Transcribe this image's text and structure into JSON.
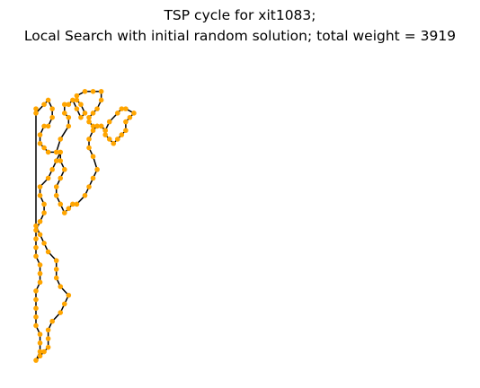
{
  "chart_data": {
    "type": "line",
    "title_line1": "TSP cycle for xit1083;",
    "title_line2": "Local Search with initial random solution; total weight = 3919",
    "xlabel": "",
    "ylabel": "",
    "axes_visible": false,
    "grid": false,
    "legend": "none",
    "xlim": [
      0,
      100
    ],
    "ylim": [
      0,
      70
    ],
    "colors": {
      "edge": "#000000",
      "node": "#ffa500"
    },
    "series": [
      {
        "type": "cycle",
        "x": [
          0,
          0,
          2,
          3,
          4,
          4,
          3,
          2,
          1,
          1,
          2,
          3,
          5,
          6,
          8,
          8,
          7,
          7,
          8,
          9,
          10,
          11,
          12,
          11,
          10,
          10,
          12,
          14,
          16,
          16,
          15,
          14,
          13,
          13,
          14,
          15,
          16,
          17,
          17,
          18,
          19,
          20,
          21,
          22,
          22,
          23,
          24,
          22,
          21,
          20,
          18,
          17,
          16,
          15,
          14,
          13,
          13,
          14,
          15,
          14,
          13,
          12,
          10,
          9,
          8,
          7,
          6,
          5,
          5,
          6,
          7,
          6,
          6,
          5,
          4,
          3,
          1,
          1,
          2,
          2,
          1,
          0,
          0,
          0,
          0,
          1,
          1,
          1,
          0,
          0,
          0,
          0,
          0,
          1,
          1,
          1,
          0,
          1,
          2,
          3,
          3,
          3,
          4,
          6,
          7,
          8,
          6,
          5,
          5,
          5,
          3,
          2,
          1,
          0
        ],
        "y": [
          59,
          58,
          60,
          61,
          59,
          57,
          55,
          55,
          53,
          51,
          50,
          49,
          49,
          52,
          55,
          57,
          58,
          60,
          60,
          61,
          59,
          57,
          58,
          60,
          61,
          62,
          63,
          63,
          63,
          61,
          59,
          58,
          57,
          56,
          55,
          55,
          55,
          54,
          53,
          52,
          51,
          52,
          53,
          54,
          56,
          57,
          58,
          59,
          59,
          58,
          56,
          54,
          55,
          55,
          54,
          52,
          50,
          48,
          45,
          43,
          41,
          39,
          37,
          37,
          36,
          35,
          37,
          39,
          41,
          43,
          45,
          47,
          49,
          47,
          45,
          43,
          41,
          39,
          37,
          35,
          33,
          31,
          29,
          27,
          25,
          23,
          21,
          19,
          17,
          15,
          13,
          11,
          9,
          7,
          5,
          3,
          1,
          2,
          3,
          4,
          6,
          8,
          10,
          12,
          14,
          16,
          18,
          20,
          22,
          24,
          26,
          28,
          30,
          32
        ]
      }
    ]
  }
}
